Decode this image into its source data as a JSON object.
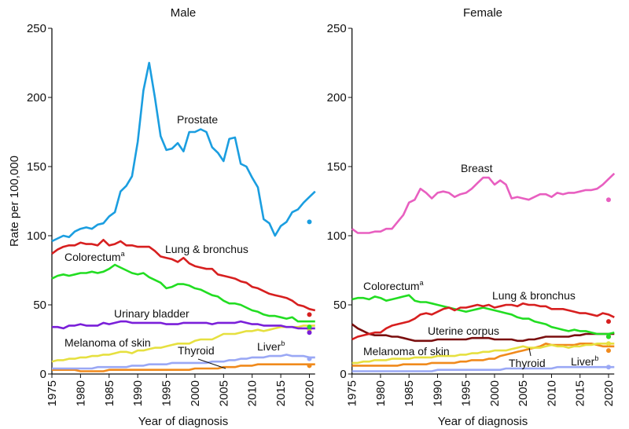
{
  "chart_data": [
    {
      "type": "line",
      "title": "Male",
      "xlabel": "Year of diagnosis",
      "ylabel": "Rate per 100,000",
      "xlim": [
        1975,
        2021
      ],
      "ylim": [
        0,
        250
      ],
      "xticks": [
        1975,
        1980,
        1985,
        1990,
        1995,
        2000,
        2005,
        2010,
        2015,
        2020
      ],
      "yticks": [
        0,
        50,
        100,
        150,
        200,
        250
      ],
      "x_start": 1975,
      "grid": false,
      "series": [
        {
          "name": "Prostate",
          "color": "#1b9ee0",
          "point_2020": 110,
          "values": [
            96,
            98,
            100,
            99,
            103,
            105,
            106,
            105,
            108,
            109,
            114,
            117,
            132,
            136,
            143,
            168,
            205,
            225,
            200,
            172,
            162,
            163,
            167,
            161,
            175,
            175,
            177,
            175,
            164,
            160,
            154,
            170,
            171,
            152,
            150,
            142,
            135,
            112,
            109,
            100,
            107,
            110,
            117,
            119,
            124,
            128,
            132
          ]
        },
        {
          "name": "Lung & bronchus",
          "color": "#d71f1f",
          "point_2020": 43,
          "values": [
            87,
            90,
            92,
            93,
            93,
            95,
            94,
            94,
            93,
            97,
            93,
            94,
            96,
            93,
            93,
            92,
            92,
            92,
            89,
            85,
            84,
            83,
            81,
            84,
            80,
            78,
            77,
            76,
            76,
            72,
            71,
            70,
            69,
            67,
            66,
            63,
            62,
            60,
            58,
            57,
            56,
            55,
            53,
            50,
            49,
            47,
            46
          ]
        },
        {
          "name": "Colorectum",
          "sup": "a",
          "color": "#22dd22",
          "point_2020": 34,
          "values": [
            69,
            71,
            72,
            71,
            72,
            73,
            73,
            74,
            73,
            74,
            76,
            79,
            77,
            75,
            73,
            72,
            73,
            70,
            68,
            66,
            62,
            63,
            65,
            65,
            64,
            62,
            61,
            59,
            57,
            56,
            53,
            51,
            51,
            50,
            48,
            46,
            45,
            43,
            42,
            42,
            41,
            40,
            41,
            38,
            38,
            38,
            38
          ]
        },
        {
          "name": "Urinary bladder",
          "color": "#7a1fd9",
          "point_2020": 30,
          "values": [
            34,
            34,
            33,
            35,
            35,
            36,
            35,
            35,
            35,
            37,
            36,
            37,
            38,
            38,
            37,
            37,
            37,
            37,
            37,
            37,
            36,
            36,
            36,
            37,
            37,
            37,
            37,
            37,
            36,
            37,
            37,
            37,
            37,
            38,
            37,
            36,
            36,
            35,
            35,
            35,
            35,
            34,
            34,
            33,
            33,
            33,
            33
          ]
        },
        {
          "name": "Melanoma of skin",
          "color": "#e6e040",
          "point_2020": 32,
          "values": [
            9,
            10,
            10,
            11,
            11,
            12,
            12,
            13,
            13,
            14,
            14,
            15,
            16,
            16,
            15,
            17,
            17,
            18,
            19,
            19,
            20,
            21,
            22,
            22,
            22,
            24,
            25,
            25,
            25,
            27,
            29,
            29,
            29,
            30,
            31,
            31,
            32,
            31,
            32,
            33,
            34,
            34,
            34,
            34,
            35,
            35,
            35
          ]
        },
        {
          "name": "Liver",
          "sup": "b",
          "color": "#9aa8f5",
          "point_2020": 11,
          "values": [
            4,
            4,
            4,
            4,
            4,
            4,
            4,
            4,
            5,
            5,
            5,
            5,
            5,
            5,
            6,
            6,
            6,
            7,
            7,
            7,
            7,
            8,
            8,
            8,
            8,
            8,
            8,
            8,
            9,
            9,
            9,
            10,
            10,
            11,
            11,
            12,
            12,
            12,
            13,
            13,
            13,
            14,
            13,
            13,
            13,
            12,
            12
          ]
        },
        {
          "name": "Thyroid",
          "color": "#f08a1c",
          "point_2020": 6,
          "values": [
            3,
            3,
            3,
            3,
            3,
            2,
            2,
            2,
            2,
            2,
            3,
            3,
            3,
            3,
            3,
            3,
            3,
            3,
            3,
            3,
            3,
            3,
            3,
            3,
            3,
            4,
            4,
            4,
            4,
            4,
            5,
            5,
            5,
            6,
            6,
            6,
            7,
            7,
            7,
            7,
            7,
            7,
            7,
            7,
            7,
            7,
            7
          ]
        }
      ]
    },
    {
      "type": "line",
      "title": "Female",
      "xlabel": "Year of diagnosis",
      "ylabel": "",
      "xlim": [
        1975,
        2021
      ],
      "ylim": [
        0,
        250
      ],
      "xticks": [
        1975,
        1980,
        1985,
        1990,
        1995,
        2000,
        2005,
        2010,
        2015,
        2020
      ],
      "yticks": [
        0,
        50,
        100,
        150,
        200,
        250
      ],
      "x_start": 1975,
      "grid": false,
      "series": [
        {
          "name": "Breast",
          "color": "#e85fc0",
          "point_2020": 126,
          "values": [
            105,
            102,
            102,
            102,
            103,
            103,
            105,
            105,
            110,
            115,
            124,
            126,
            134,
            131,
            127,
            131,
            132,
            131,
            128,
            130,
            131,
            134,
            138,
            142,
            142,
            137,
            140,
            137,
            127,
            128,
            127,
            126,
            128,
            130,
            130,
            128,
            131,
            130,
            131,
            131,
            132,
            133,
            133,
            134,
            137,
            141,
            145
          ]
        },
        {
          "name": "Lung & bronchus",
          "color": "#d71f1f",
          "point_2020": 38,
          "values": [
            25,
            27,
            28,
            29,
            30,
            30,
            33,
            35,
            36,
            37,
            38,
            40,
            43,
            44,
            43,
            45,
            47,
            48,
            46,
            48,
            48,
            49,
            50,
            49,
            50,
            48,
            49,
            50,
            50,
            49,
            51,
            50,
            50,
            49,
            49,
            47,
            47,
            47,
            46,
            45,
            44,
            44,
            43,
            42,
            44,
            43,
            41
          ]
        },
        {
          "name": "Colorectum",
          "sup": "a",
          "color": "#22dd22",
          "point_2020": 27,
          "values": [
            54,
            55,
            55,
            54,
            56,
            55,
            53,
            54,
            55,
            56,
            57,
            53,
            52,
            52,
            51,
            50,
            49,
            48,
            47,
            46,
            45,
            46,
            47,
            48,
            47,
            46,
            45,
            44,
            43,
            41,
            40,
            40,
            38,
            37,
            36,
            34,
            33,
            32,
            31,
            32,
            31,
            31,
            30,
            29,
            29,
            29,
            30
          ]
        },
        {
          "name": "Uterine corpus",
          "color": "#7a0e0e",
          "point_2020": 27,
          "values": [
            36,
            33,
            31,
            29,
            28,
            28,
            28,
            27,
            27,
            26,
            25,
            24,
            24,
            24,
            24,
            25,
            25,
            25,
            25,
            25,
            25,
            26,
            26,
            26,
            26,
            25,
            25,
            25,
            25,
            24,
            24,
            25,
            25,
            26,
            27,
            27,
            27,
            27,
            27,
            28,
            28,
            29,
            29,
            29,
            29,
            29,
            29
          ]
        },
        {
          "name": "Melanoma of skin",
          "color": "#e6e040",
          "point_2020": 22,
          "values": [
            8,
            8,
            9,
            9,
            10,
            10,
            10,
            11,
            11,
            11,
            11,
            12,
            12,
            12,
            12,
            13,
            13,
            13,
            13,
            14,
            14,
            15,
            15,
            16,
            16,
            17,
            17,
            17,
            18,
            19,
            20,
            19,
            19,
            19,
            20,
            21,
            20,
            20,
            19,
            20,
            20,
            21,
            21,
            22,
            22,
            22,
            22
          ]
        },
        {
          "name": "Thyroid",
          "color": "#f08a1c",
          "point_2020": 17,
          "values": [
            6,
            6,
            6,
            6,
            6,
            6,
            6,
            6,
            6,
            7,
            7,
            7,
            7,
            7,
            8,
            8,
            8,
            8,
            8,
            9,
            9,
            10,
            10,
            10,
            11,
            11,
            13,
            14,
            15,
            16,
            17,
            18,
            19,
            20,
            22,
            21,
            21,
            21,
            21,
            21,
            22,
            22,
            22,
            21,
            20,
            20,
            20
          ]
        },
        {
          "name": "Liver",
          "sup": "b",
          "color": "#9aa8f5",
          "point_2020": 5,
          "values": [
            2,
            2,
            2,
            2,
            2,
            2,
            2,
            2,
            2,
            2,
            2,
            2,
            2,
            2,
            2,
            3,
            3,
            3,
            3,
            3,
            3,
            3,
            3,
            3,
            3,
            3,
            3,
            4,
            4,
            4,
            4,
            4,
            4,
            4,
            4,
            4,
            5,
            5,
            5,
            5,
            5,
            5,
            5,
            5,
            5,
            5,
            5
          ]
        }
      ]
    }
  ]
}
